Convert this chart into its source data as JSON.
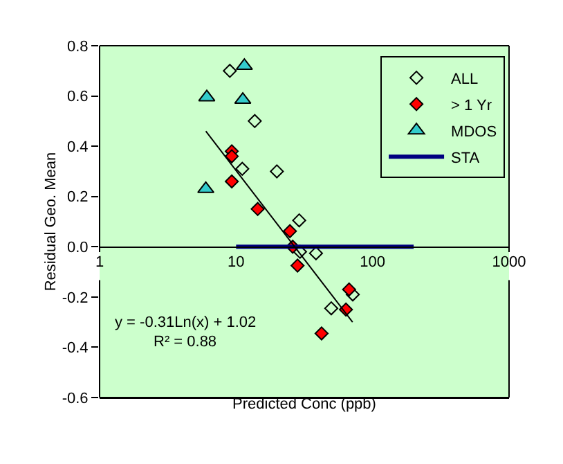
{
  "chart_data": {
    "type": "scatter",
    "xlabel": "Predicted Conc (ppb)",
    "ylabel": "Residual Geo. Mean",
    "log": "x",
    "xlim": [
      1,
      1000
    ],
    "xticks": [
      1,
      10,
      100,
      1000
    ],
    "ylim": [
      -0.6,
      0.8
    ],
    "yticks": [
      -0.6,
      -0.4,
      -0.2,
      {
        "value": 0,
        "label": "0.0"
      },
      0.2,
      0.4,
      0.6,
      0.8
    ],
    "grid": false,
    "legend": "top right",
    "series": [
      {
        "name": "ALL",
        "marker": "diamond",
        "color": "#000000",
        "x": [
          9.0,
          13.7,
          11.1,
          19.9,
          29,
          29.4,
          38.5,
          49.8,
          71.6
        ],
        "values": [
          0.7,
          0.5,
          0.31,
          0.3,
          0.105,
          -0.02,
          -0.026,
          -0.245,
          -0.19
        ]
      },
      {
        "name": "> 1 Yr",
        "marker": "diamond",
        "color": "#ff0000",
        "x": [
          9.3,
          9.3,
          9.3,
          14.4,
          24.8,
          26,
          28.2,
          42.3,
          63.8,
          67.3
        ],
        "values": [
          0.38,
          0.36,
          0.26,
          0.15,
          0.062,
          0.0,
          -0.075,
          -0.345,
          -0.25,
          -0.17
        ]
      },
      {
        "name": "MDOS",
        "marker": "triangle",
        "color": "#33cccc",
        "x": [
          11.5,
          6.1,
          11.2,
          6.0
        ],
        "values": [
          0.72,
          0.595,
          0.585,
          0.23
        ]
      },
      {
        "name": "STA",
        "type": "line",
        "color": "#000080",
        "x": [
          10,
          200
        ],
        "values": [
          0,
          0
        ]
      },
      {
        "type": "line",
        "color": "#000000",
        "x": [
          6,
          71.4
        ],
        "values": [
          0.46,
          -0.3
        ]
      }
    ],
    "annotations": [
      "y = -0.31Ln(x) + 1.02",
      "R² = 0.88"
    ]
  }
}
